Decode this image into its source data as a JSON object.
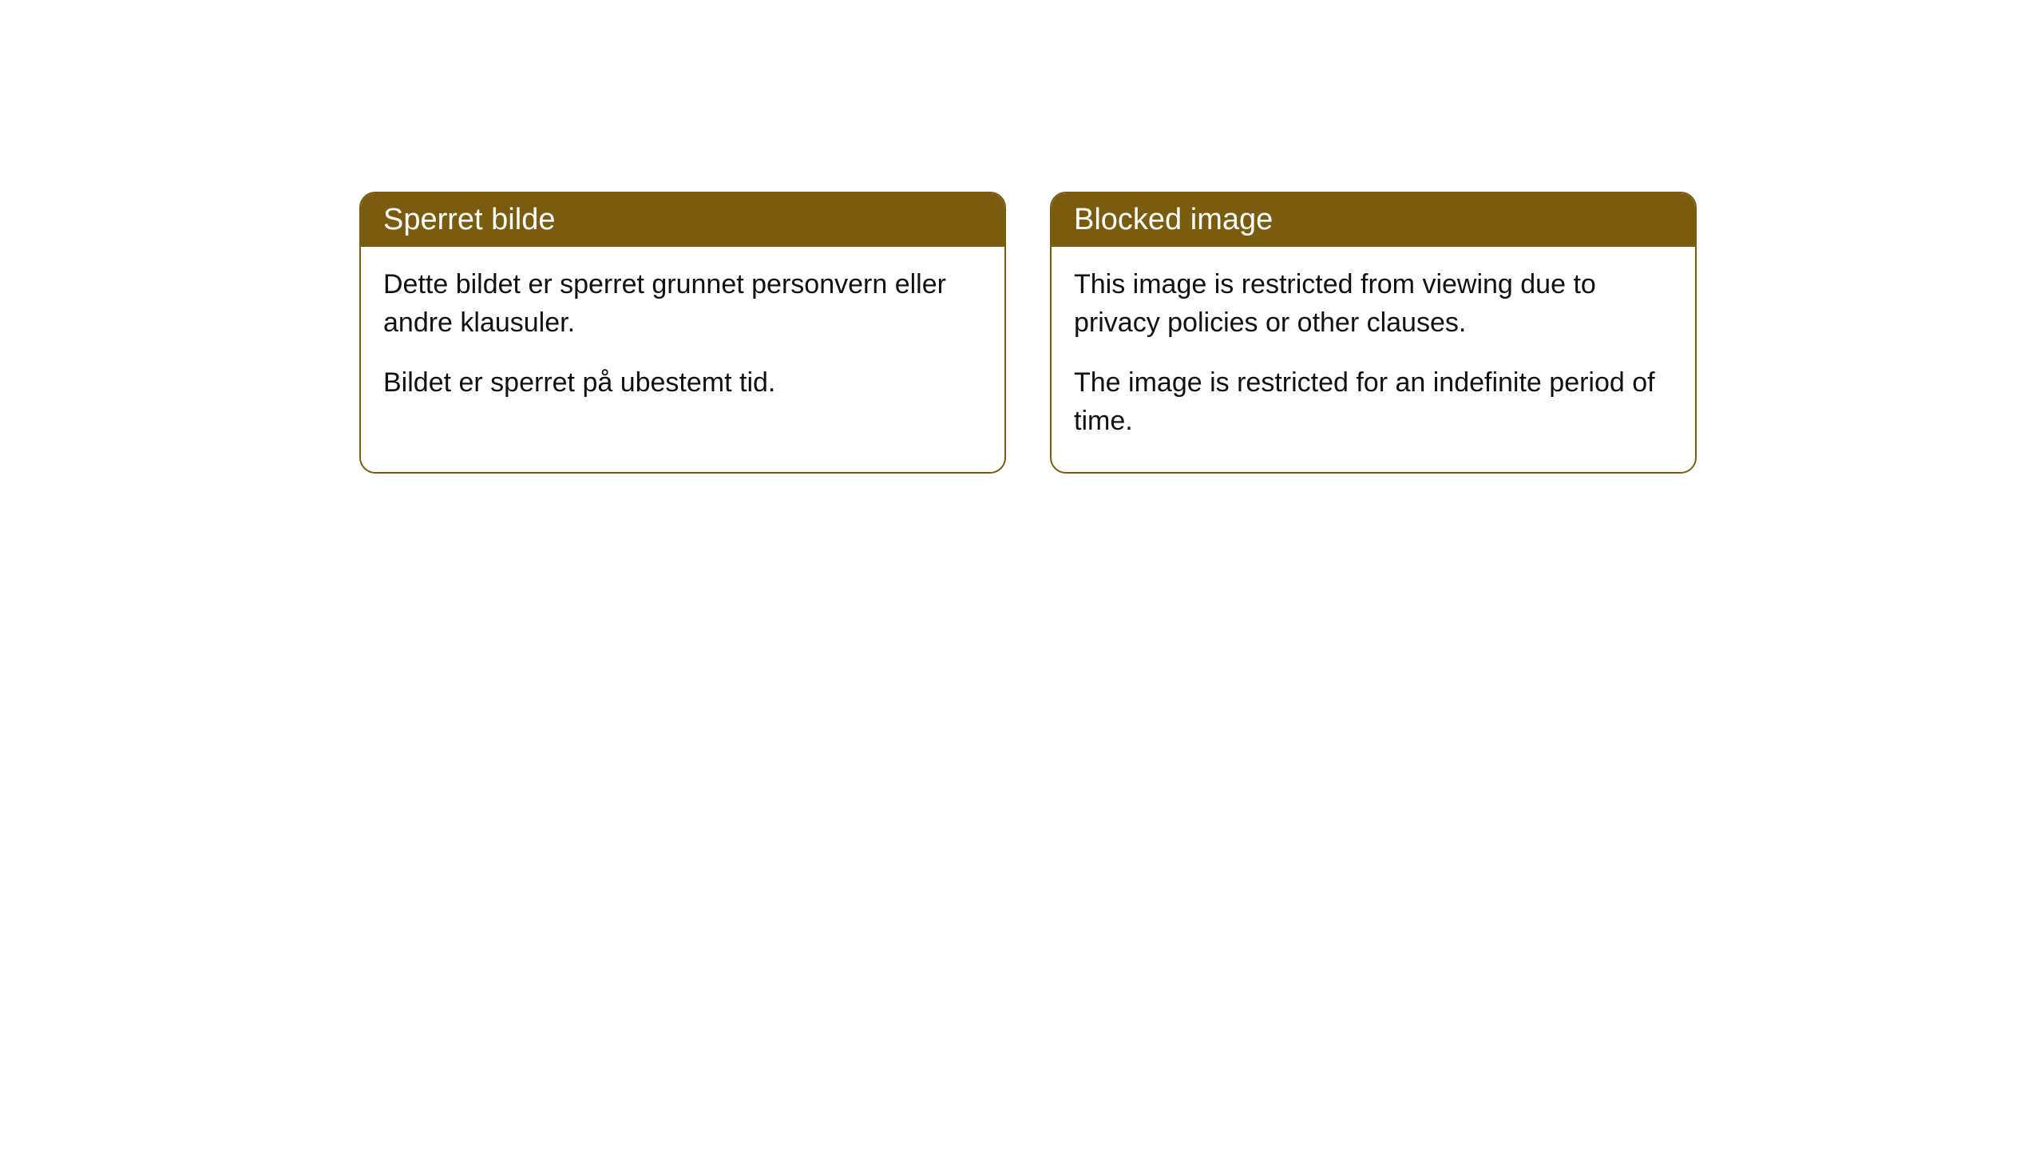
{
  "cards": [
    {
      "title": "Sperret bilde",
      "paragraph1": "Dette bildet er sperret grunnet personvern eller andre klausuler.",
      "paragraph2": "Bildet er sperret på ubestemt tid."
    },
    {
      "title": "Blocked image",
      "paragraph1": "This image is restricted from viewing due to privacy policies or other clauses.",
      "paragraph2": "The image is restricted for an indefinite period of time."
    }
  ],
  "styling": {
    "header_background": "#7a5c11",
    "header_text_color": "#ffffff",
    "border_color": "#7a5c11",
    "body_background": "#ffffff",
    "body_text_color": "#111111",
    "border_radius": 20,
    "title_fontsize": 38,
    "body_fontsize": 34
  }
}
